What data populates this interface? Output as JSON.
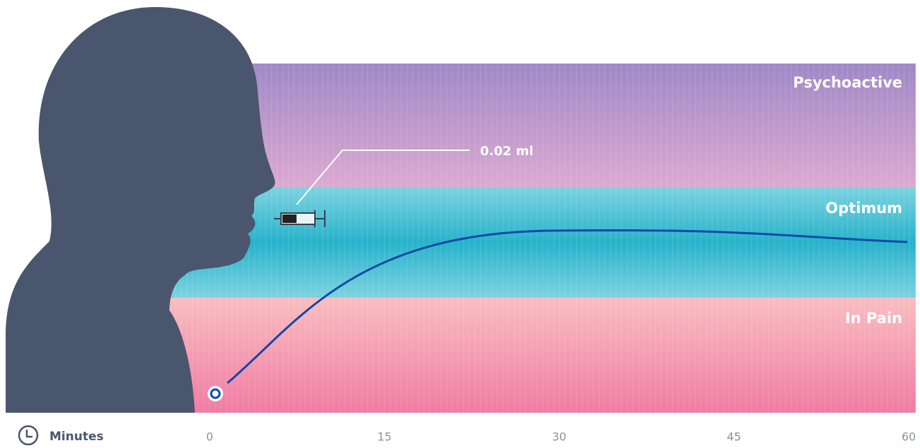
{
  "chart_data": {
    "type": "band-timeline",
    "x_label": "Minutes",
    "xlim": [
      0,
      60
    ],
    "xticks": [
      0,
      15,
      30,
      45,
      60
    ],
    "bands": [
      {
        "label": "Psychoactive"
      },
      {
        "label": "Optimum"
      },
      {
        "label": "In Pain"
      }
    ],
    "annotation": "0.02 ml"
  }
}
